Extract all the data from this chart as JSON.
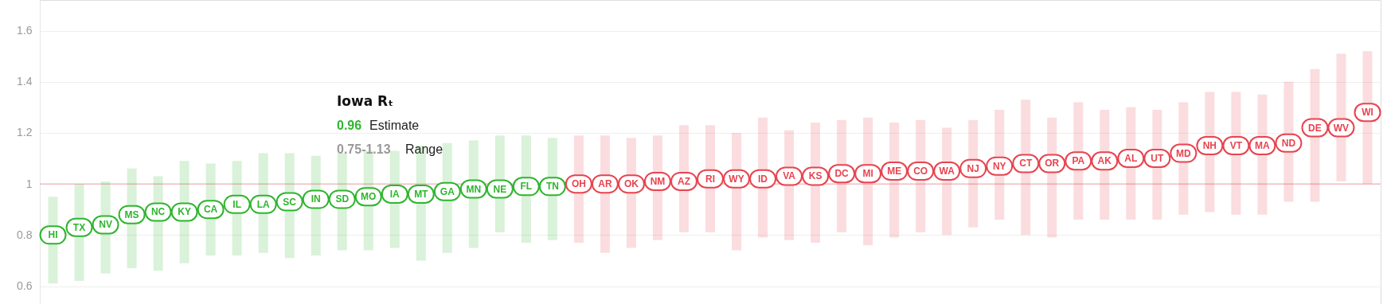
{
  "chart_data": {
    "type": "scatter",
    "categories": [
      "HI",
      "TX",
      "NV",
      "MS",
      "NC",
      "KY",
      "CA",
      "IL",
      "LA",
      "SC",
      "IN",
      "SD",
      "MO",
      "IA",
      "MT",
      "GA",
      "MN",
      "NE",
      "FL",
      "TN",
      "OH",
      "AR",
      "OK",
      "NM",
      "AZ",
      "RI",
      "WY",
      "ID",
      "VA",
      "KS",
      "DC",
      "MI",
      "ME",
      "CO",
      "WA",
      "NJ",
      "NY",
      "CT",
      "OR",
      "PA",
      "AK",
      "AL",
      "UT",
      "MD",
      "NH",
      "VT",
      "MA",
      "ND",
      "DE",
      "WV",
      "WI"
    ],
    "series": [
      {
        "values": [
          0.8,
          0.83,
          0.84,
          0.88,
          0.89,
          0.89,
          0.9,
          0.92,
          0.92,
          0.93,
          0.94,
          0.94,
          0.95,
          0.96,
          0.96,
          0.97,
          0.98,
          0.98,
          0.99,
          0.99,
          1.0,
          1.0,
          1.0,
          1.01,
          1.01,
          1.02,
          1.02,
          1.02,
          1.03,
          1.03,
          1.04,
          1.04,
          1.05,
          1.05,
          1.05,
          1.06,
          1.07,
          1.08,
          1.08,
          1.09,
          1.09,
          1.1,
          1.1,
          1.12,
          1.15,
          1.15,
          1.15,
          1.16,
          1.22,
          1.22,
          1.28
        ],
        "errors": [
          [
            0.61,
            0.95
          ],
          [
            0.62,
            1.0
          ],
          [
            0.65,
            1.01
          ],
          [
            0.67,
            1.06
          ],
          [
            0.66,
            1.03
          ],
          [
            0.69,
            1.09
          ],
          [
            0.72,
            1.08
          ],
          [
            0.72,
            1.09
          ],
          [
            0.73,
            1.12
          ],
          [
            0.71,
            1.12
          ],
          [
            0.72,
            1.11
          ],
          [
            0.74,
            1.12
          ],
          [
            0.74,
            1.13
          ],
          [
            0.75,
            1.13
          ],
          [
            0.7,
            1.15
          ],
          [
            0.73,
            1.16
          ],
          [
            0.75,
            1.17
          ],
          [
            0.81,
            1.19
          ],
          [
            0.77,
            1.19
          ],
          [
            0.78,
            1.18
          ],
          [
            0.77,
            1.19
          ],
          [
            0.73,
            1.19
          ],
          [
            0.75,
            1.18
          ],
          [
            0.78,
            1.19
          ],
          [
            0.81,
            1.23
          ],
          [
            0.81,
            1.23
          ],
          [
            0.74,
            1.2
          ],
          [
            0.79,
            1.26
          ],
          [
            0.78,
            1.21
          ],
          [
            0.77,
            1.24
          ],
          [
            0.81,
            1.25
          ],
          [
            0.76,
            1.26
          ],
          [
            0.79,
            1.24
          ],
          [
            0.81,
            1.25
          ],
          [
            0.8,
            1.22
          ],
          [
            0.83,
            1.25
          ],
          [
            0.86,
            1.29
          ],
          [
            0.8,
            1.33
          ],
          [
            0.79,
            1.26
          ],
          [
            0.86,
            1.32
          ],
          [
            0.86,
            1.29
          ],
          [
            0.86,
            1.3
          ],
          [
            0.86,
            1.29
          ],
          [
            0.88,
            1.32
          ],
          [
            0.89,
            1.36
          ],
          [
            0.88,
            1.36
          ],
          [
            0.88,
            1.35
          ],
          [
            0.93,
            1.4
          ],
          [
            0.93,
            1.45
          ],
          [
            1.01,
            1.51
          ],
          [
            1.0,
            1.52
          ]
        ],
        "colors": [
          "#2eb52e",
          "#2eb52e",
          "#2eb52e",
          "#2eb52e",
          "#2eb52e",
          "#2eb52e",
          "#2eb52e",
          "#2eb52e",
          "#2eb52e",
          "#2eb52e",
          "#2eb52e",
          "#2eb52e",
          "#2eb52e",
          "#2eb52e",
          "#2eb52e",
          "#2eb52e",
          "#2eb52e",
          "#2eb52e",
          "#2eb52e",
          "#2eb52e",
          "#e8434f",
          "#e8434f",
          "#e8434f",
          "#e8434f",
          "#e8434f",
          "#e8434f",
          "#e8434f",
          "#e8434f",
          "#e8434f",
          "#e8434f",
          "#e8434f",
          "#e8434f",
          "#e8434f",
          "#e8434f",
          "#e8434f",
          "#e8434f",
          "#e8434f",
          "#e8434f",
          "#e8434f",
          "#e8434f",
          "#e8434f",
          "#e8434f",
          "#e8434f",
          "#e8434f",
          "#e8434f",
          "#e8434f",
          "#e8434f",
          "#e8434f",
          "#e8434f",
          "#e8434f",
          "#e8434f"
        ]
      }
    ],
    "ylim": [
      0.53,
      1.72
    ],
    "yticks": [
      0.6,
      0.8,
      1,
      1.2,
      1.4,
      1.6
    ],
    "grid": "y",
    "tick_labels": "y",
    "marker": "square",
    "ref_lines": [
      {
        "axis": "y",
        "value": 1,
        "color": "#f2a0a6"
      }
    ],
    "annotations": [
      "Iowa Rₜ",
      "0.96 Estimate",
      "0.75-1.13 Range"
    ]
  }
}
